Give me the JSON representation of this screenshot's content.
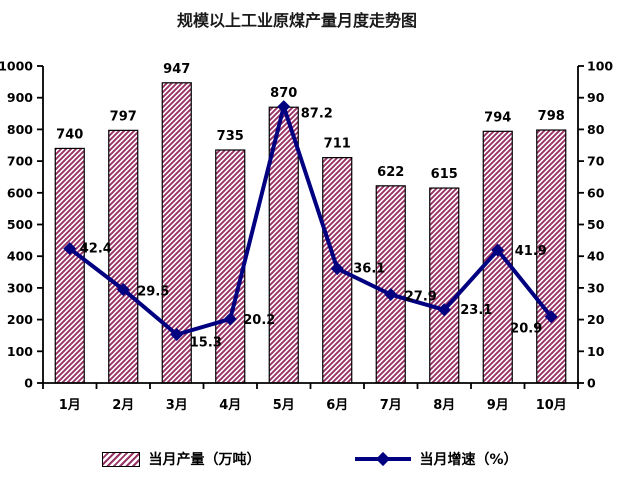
{
  "chart_data": {
    "type": "combo",
    "title": "规模以上工业原煤产量月度走势图",
    "categories": [
      "1月",
      "2月",
      "3月",
      "4月",
      "5月",
      "6月",
      "7月",
      "8月",
      "9月",
      "10月"
    ],
    "series": [
      {
        "name": "当月产量（万吨）",
        "type": "bar",
        "axis": "left",
        "values": [
          740,
          797,
          947,
          735,
          870,
          711,
          622,
          615,
          794,
          798
        ]
      },
      {
        "name": "当月增速（%）",
        "type": "line",
        "axis": "right",
        "marker": "diamond",
        "values": [
          42.4,
          29.5,
          15.3,
          20.2,
          87.2,
          36.1,
          27.9,
          23.1,
          41.9,
          20.9
        ]
      }
    ],
    "left_axis": {
      "min": 0,
      "max": 1000,
      "step": 100
    },
    "right_axis": {
      "min": 0,
      "max": 100,
      "step": 10
    },
    "grid": false,
    "legend_position": "bottom",
    "data_labels": true
  },
  "colors": {
    "bar_hatch": "#993366",
    "bar_border": "#000000",
    "line": "#000080",
    "text": "#000000",
    "background": "#ffffff"
  }
}
